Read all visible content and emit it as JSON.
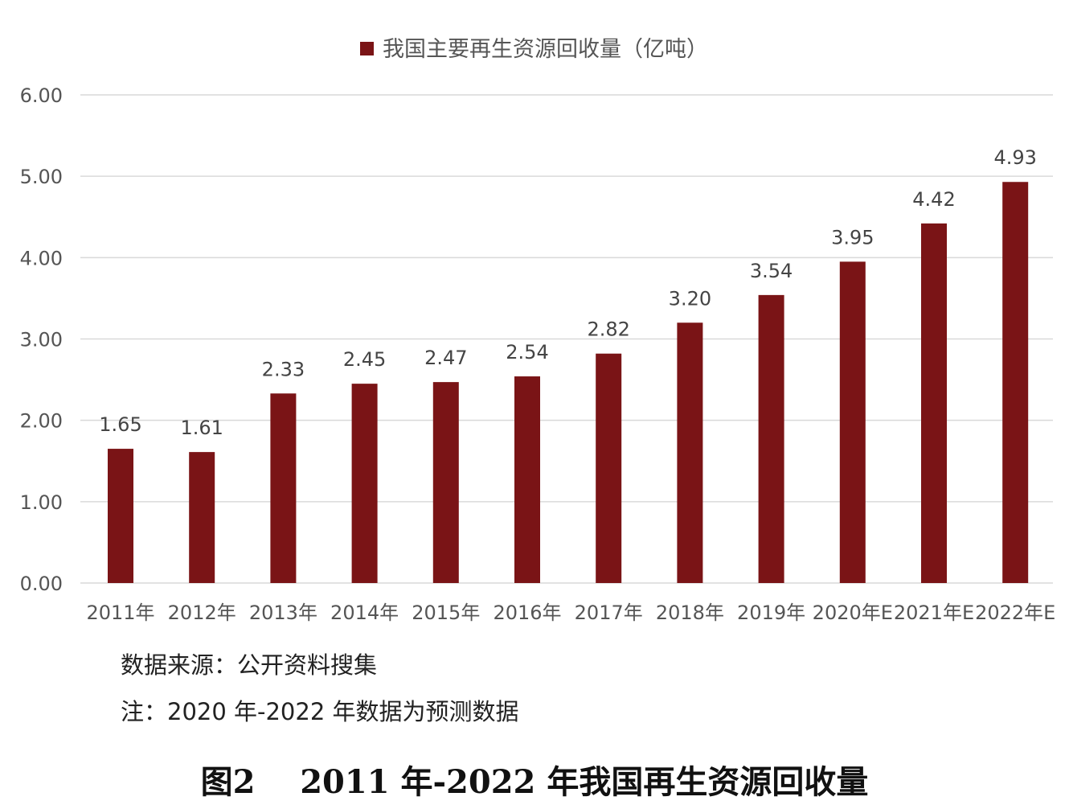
{
  "chart_data": {
    "type": "bar",
    "title": "",
    "legend": {
      "position": "top",
      "entries": [
        "我国主要再生资源回收量（亿吨）"
      ]
    },
    "series": [
      {
        "name": "我国主要再生资源回收量（亿吨）",
        "color": "#7a1416",
        "values": [
          1.65,
          1.61,
          2.33,
          2.45,
          2.47,
          2.54,
          2.82,
          3.2,
          3.54,
          3.95,
          4.42,
          4.93
        ]
      }
    ],
    "categories": [
      "2011年",
      "2012年",
      "2013年",
      "2014年",
      "2015年",
      "2016年",
      "2017年",
      "2018年",
      "2019年",
      "2020年E",
      "2021年E",
      "2022年E"
    ],
    "data_labels": [
      "1.65",
      "1.61",
      "2.33",
      "2.45",
      "2.47",
      "2.54",
      "2.82",
      "3.20",
      "3.54",
      "3.95",
      "4.42",
      "4.93"
    ],
    "y_ticks": [
      "0.00",
      "1.00",
      "2.00",
      "3.00",
      "4.00",
      "5.00",
      "6.00"
    ],
    "ylim": [
      0,
      6
    ],
    "grid": true,
    "xlabel": "",
    "ylabel": ""
  },
  "source": "数据来源：公开资料搜集",
  "note": "注：2020 年-2022 年数据为预测数据",
  "caption": "图2    2011 年-2022 年我国再生资源回收量"
}
